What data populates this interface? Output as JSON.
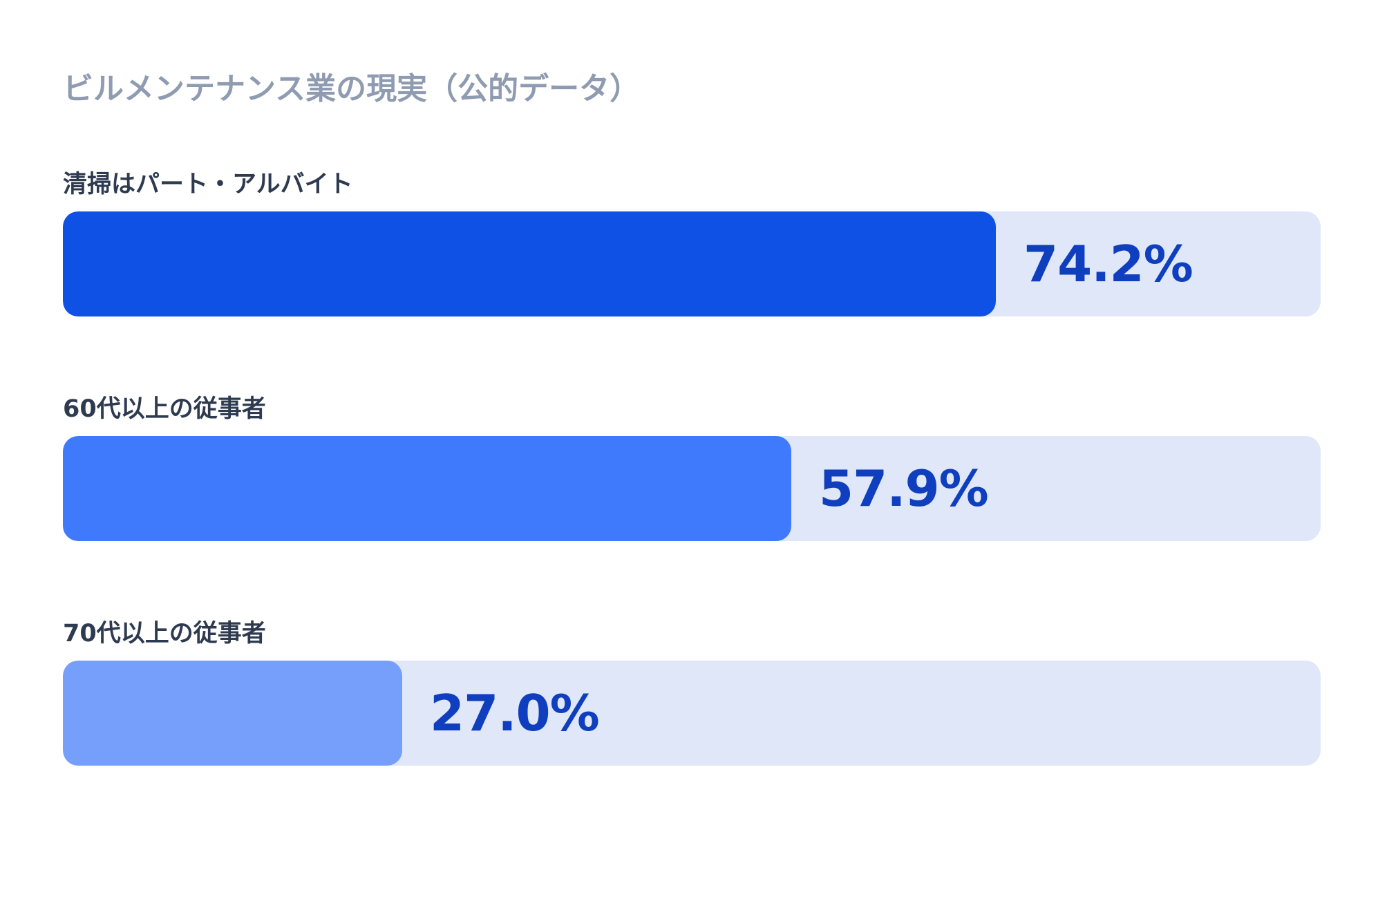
{
  "chart_data": {
    "type": "bar",
    "orientation": "horizontal",
    "title": "ビルメンテナンス業の現実（公的データ）",
    "categories": [
      "清掃はパート・アルバイト",
      "60代以上の従事者",
      "70代以上の従事者"
    ],
    "values": [
      74.2,
      57.9,
      27.0
    ],
    "value_labels": [
      "74.2%",
      "57.9%",
      "27.0%"
    ],
    "unit": "%",
    "xlim": [
      0,
      100
    ],
    "grid": false,
    "legend": "none",
    "colors": {
      "bars": [
        "#0f51e4",
        "#3f79fc",
        "#769ffb"
      ],
      "track": "#dfe7f9",
      "value_text": "#0f3fbf",
      "label_text": "#2d3a4f",
      "title_text": "#8e9bb0"
    }
  }
}
